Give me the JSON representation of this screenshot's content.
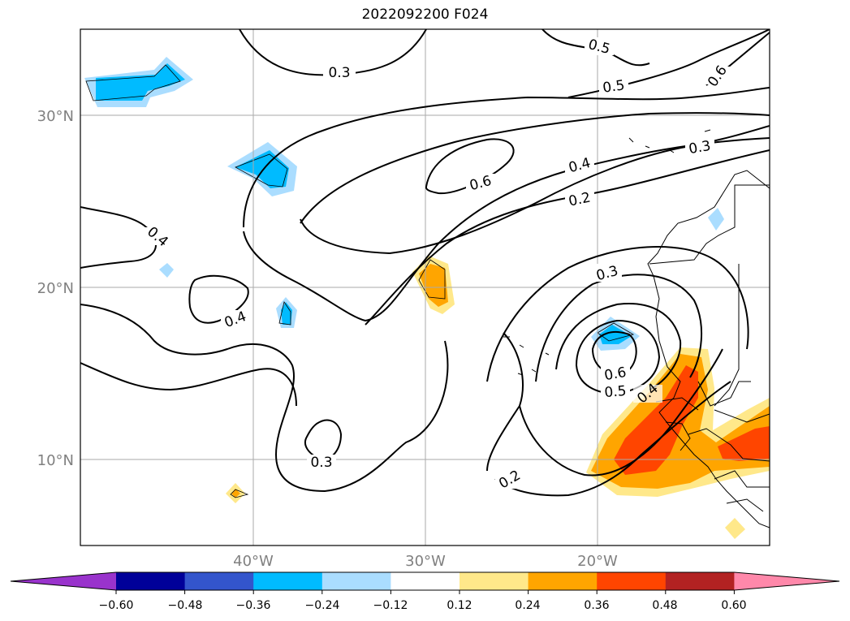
{
  "title": "2022092200 F024",
  "axes": {
    "lat_labels": [
      "30°N",
      "20°N",
      "10°N"
    ],
    "lon_labels": [
      "40°W",
      "30°W",
      "20°W"
    ]
  },
  "contour_labels": [
    "0.3",
    "0.5",
    "0.5",
    "0.6",
    "0.4",
    "0.2",
    "0.3",
    "0.6",
    "0.4",
    "0.4",
    "0.3",
    "0.6",
    "0.5",
    "0.4",
    "0.3",
    "0.2"
  ],
  "colorbar": {
    "ticks": [
      "−0.60",
      "−0.48",
      "−0.36",
      "−0.24",
      "−0.12",
      "0.12",
      "0.24",
      "0.36",
      "0.48",
      "0.60"
    ],
    "colors": [
      "#9933cc",
      "#000099",
      "#3355cc",
      "#00bbff",
      "#aaddff",
      "#ffffff",
      "#ffe88a",
      "#ffa500",
      "#ff4500",
      "#b22222",
      "#ff88aa"
    ]
  }
}
